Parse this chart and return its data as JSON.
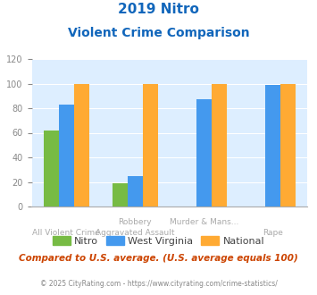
{
  "title_line1": "2019 Nitro",
  "title_line2": "Violent Crime Comparison",
  "nitro": [
    62,
    19,
    0,
    0
  ],
  "west_virginia": [
    83,
    25,
    87,
    99
  ],
  "national": [
    100,
    100,
    100,
    100
  ],
  "nitro_color": "#77bb44",
  "wv_color": "#4499ee",
  "national_color": "#ffaa33",
  "ylim": [
    0,
    120
  ],
  "yticks": [
    0,
    20,
    40,
    60,
    80,
    100,
    120
  ],
  "footnote": "Compared to U.S. average. (U.S. average equals 100)",
  "copyright": "© 2025 CityRating.com - https://www.cityrating.com/crime-statistics/",
  "bg_color": "#ddeeff",
  "title_color": "#1166bb",
  "footnote_color": "#cc4400",
  "copyright_color": "#888888",
  "label_color": "#aaaaaa"
}
